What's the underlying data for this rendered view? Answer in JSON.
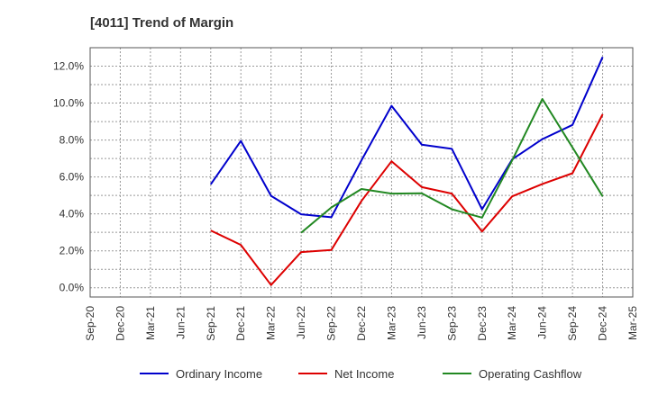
{
  "chart_data": {
    "type": "line",
    "title": "[4011]  Trend of Margin",
    "xlabel": "",
    "ylabel": "",
    "categories": [
      "Sep-20",
      "Dec-20",
      "Mar-21",
      "Jun-21",
      "Sep-21",
      "Dec-21",
      "Mar-22",
      "Jun-22",
      "Sep-22",
      "Dec-22",
      "Mar-23",
      "Jun-23",
      "Sep-23",
      "Dec-23",
      "Mar-24",
      "Jun-24",
      "Sep-24",
      "Dec-24",
      "Mar-25"
    ],
    "yticks": [
      "0.0%",
      "2.0%",
      "4.0%",
      "6.0%",
      "8.0%",
      "10.0%",
      "12.0%"
    ],
    "ytick_values": [
      0,
      2,
      4,
      6,
      8,
      10,
      12
    ],
    "ylim": [
      -0.5,
      13.0
    ],
    "grid": true,
    "legend_position": "bottom",
    "series": [
      {
        "name": "Ordinary Income",
        "color": "#0000cc",
        "values": [
          null,
          null,
          null,
          null,
          5.6,
          7.95,
          4.98,
          3.98,
          3.82,
          6.9,
          9.85,
          7.75,
          7.52,
          4.25,
          6.95,
          8.05,
          8.82,
          12.5,
          null
        ]
      },
      {
        "name": "Net Income",
        "color": "#dd0000",
        "values": [
          null,
          null,
          null,
          null,
          3.1,
          2.32,
          0.15,
          1.93,
          2.05,
          4.7,
          6.85,
          5.45,
          5.1,
          3.05,
          4.95,
          5.62,
          6.2,
          9.4,
          null
        ]
      },
      {
        "name": "Operating Cashflow",
        "color": "#228822",
        "values": [
          null,
          null,
          null,
          null,
          null,
          null,
          null,
          2.98,
          4.35,
          5.35,
          5.1,
          5.12,
          4.25,
          3.8,
          6.9,
          10.22,
          7.6,
          4.95,
          null
        ]
      }
    ]
  }
}
